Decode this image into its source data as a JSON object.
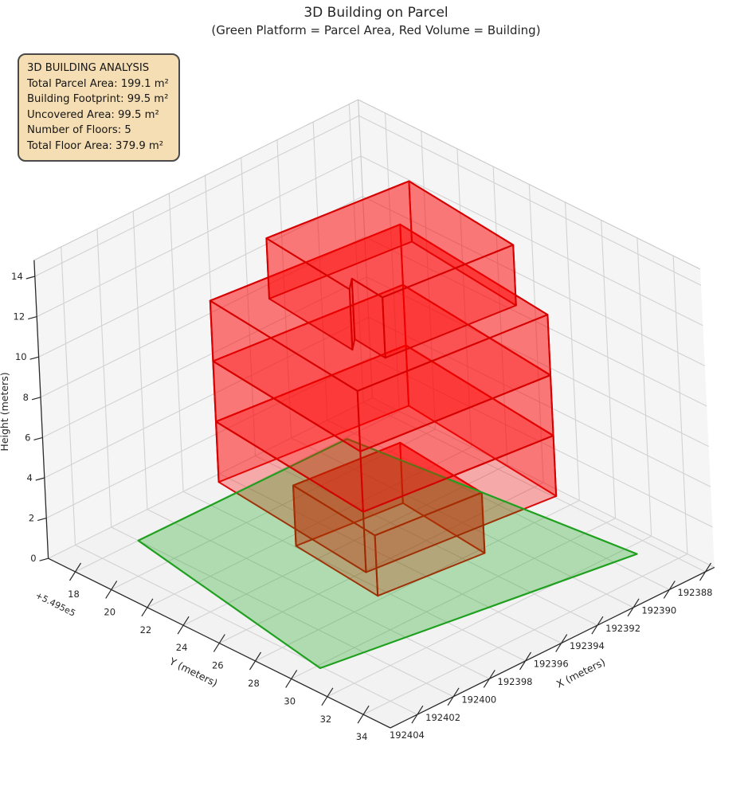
{
  "title": "3D Building on Parcel",
  "subtitle": "(Green Platform = Parcel Area, Red Volume = Building)",
  "info_box": {
    "lines": [
      "3D BUILDING ANALYSIS",
      "Total Parcel Area: 199.1 m²",
      "Building Footprint: 99.5 m²",
      "Uncovered Area: 99.5 m²",
      "Number of Floors: 5",
      "Total Floor Area: 379.9 m²"
    ]
  },
  "chart_data": {
    "type": "3d-building-extrusion",
    "title": "3D Building on Parcel",
    "subtitle": "(Green Platform = Parcel Area, Red Volume = Building)",
    "axes": {
      "xlabel": "X (meters)",
      "ylabel": "Y (meters)",
      "zlabel": "Height (meters)",
      "x_ticks": [
        192388,
        192390,
        192392,
        192394,
        192396,
        192398,
        192400,
        192402,
        192404
      ],
      "y_ticks": [
        549518,
        549520,
        549522,
        549524,
        549526,
        549528,
        549530,
        549532,
        549534
      ],
      "y_tick_labels": [
        "18",
        "20",
        "22",
        "24",
        "26",
        "28",
        "30",
        "32",
        "34"
      ],
      "y_offset_text": "+5.495e5",
      "z_ticks": [
        0,
        2,
        4,
        6,
        8,
        10,
        12,
        14
      ],
      "xlim": [
        192387.5,
        192405.5
      ],
      "ylim": [
        549516.5,
        549535.5
      ],
      "zlim": [
        0,
        14.8
      ],
      "grid": true
    },
    "coord_base": {
      "x": 192388,
      "y": 549500
    },
    "stats": {
      "total_parcel_area_m2": 199.1,
      "building_footprint_m2": 99.5,
      "uncovered_area_m2": 99.5,
      "number_of_floors": 5,
      "total_floor_area_m2": 379.9,
      "floor_height_m": 3
    },
    "parcel": {
      "z": 0,
      "polygon": [
        [
          192404.1,
          549530.2
        ],
        [
          192388.9,
          549532.6
        ],
        [
          192390.5,
          549518.1
        ],
        [
          192402.0,
          549518.0
        ]
      ]
    },
    "floors": [
      {
        "name": "floor-1",
        "z0": 0,
        "z1": 3,
        "polygon": [
          [
            192398.45,
            549527.75
          ],
          [
            192393.08,
            549528.32
          ],
          [
            192392.55,
            549523.25
          ],
          [
            192397.92,
            549522.68
          ]
        ]
      },
      {
        "name": "floor-2",
        "z0": 3,
        "z1": 6,
        "polygon": [
          [
            192400.76,
            549529.57
          ],
          [
            192391.21,
            549530.58
          ],
          [
            192390.24,
            549521.42
          ],
          [
            192399.79,
            549520.42
          ]
        ]
      },
      {
        "name": "floor-3",
        "z0": 6,
        "z1": 9,
        "polygon": [
          [
            192400.76,
            549529.57
          ],
          [
            192391.21,
            549530.58
          ],
          [
            192390.24,
            549521.42
          ],
          [
            192399.79,
            549520.42
          ]
        ]
      },
      {
        "name": "floor-4",
        "z0": 9,
        "z1": 12,
        "polygon": [
          [
            192400.76,
            549529.57
          ],
          [
            192391.21,
            549530.58
          ],
          [
            192390.24,
            549521.42
          ],
          [
            192399.79,
            549520.42
          ]
        ]
      },
      {
        "name": "floor-5",
        "z0": 12,
        "z1": 15,
        "polygon": [
          [
            192390.88,
            549522.71
          ],
          [
            192398.04,
            549521.95
          ],
          [
            192398.59,
            549527.12
          ],
          [
            192397.93,
            549526.59
          ],
          [
            192398.13,
            549528.49
          ],
          [
            192391.56,
            549529.18
          ]
        ]
      }
    ],
    "colors": {
      "building_fill": "#ff0000",
      "building_edge": "#d60000",
      "parcel_fill": "#00a000",
      "parcel_edge": "#1fa01f",
      "pane": "#f1f1f1",
      "grid": "#d2d2d2",
      "spine": "#2a2a2a",
      "text": "#262626"
    }
  }
}
